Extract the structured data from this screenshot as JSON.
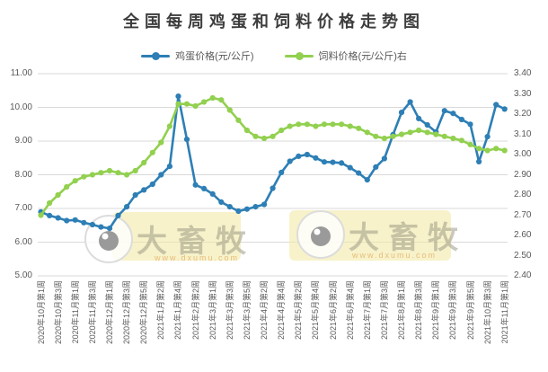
{
  "title": "全国每周鸡蛋和饲料价格走势图",
  "legend": [
    {
      "label": "鸡蛋价格(元/公斤)",
      "color": "#2d7fb5"
    },
    {
      "label": "饲料价格(元/公斤)右",
      "color": "#92d04f"
    }
  ],
  "watermark": {
    "name": "大畜牧",
    "url": "www.dxumu.com"
  },
  "colors": {
    "egg_line": "#2d7fb5",
    "feed_line": "#92d04f",
    "gridline": "#d9d9d9",
    "axis_text": "#595959",
    "title_text": "#3d3d3d",
    "watermark_box": "rgba(242,234,166,0.6)"
  },
  "chart_data": {
    "type": "line",
    "title": "全国每周鸡蛋和饲料价格走势图",
    "grid": true,
    "legend_position": "top",
    "x_labels": [
      "2020年10月第1周",
      "2020年10月第3周",
      "2020年11月第1周",
      "2020年11月第3周",
      "2020年12月第1周",
      "2020年12月第3周",
      "2020年12月第5周",
      "2021年1月第2周",
      "2021年1月第4周",
      "2021年2月第2周",
      "2021年3月第1周",
      "2021年3月第3周",
      "2021年3月第5周",
      "2021年4月第2周",
      "2021年4月第4周",
      "2021年5月第2周",
      "2021年5月第4周",
      "2021年6月第2周",
      "2021年6月第4周",
      "2021年7月第1周",
      "2021年7月第3周",
      "2021年8月第1周",
      "2021年8月第3周",
      "2021年9月第1周",
      "2021年9月第3周",
      "2021年9月第5周",
      "2021年10月第3周",
      "2021年11月第1周"
    ],
    "x_labels_every_n_points": 2,
    "left_axis": {
      "min": 5.0,
      "max": 11.0,
      "step": 1.0,
      "ticks": [
        "11.00",
        "10.00",
        "9.00",
        "8.00",
        "7.00",
        "6.00",
        "5.00"
      ]
    },
    "right_axis": {
      "min": 2.4,
      "max": 3.4,
      "step": 0.1,
      "ticks": [
        "3.40",
        "3.30",
        "3.20",
        "3.10",
        "3.00",
        "2.90",
        "2.80",
        "2.70",
        "2.60",
        "2.50",
        "2.40"
      ]
    },
    "series": [
      {
        "name": "鸡蛋价格(元/公斤)",
        "axis": "left",
        "color": "#2d7fb5",
        "values": [
          6.9,
          6.79,
          6.72,
          6.64,
          6.66,
          6.58,
          6.52,
          6.45,
          6.41,
          6.79,
          7.05,
          7.4,
          7.55,
          7.72,
          8.0,
          8.25,
          10.33,
          9.05,
          7.7,
          7.59,
          7.43,
          7.19,
          7.05,
          6.92,
          6.98,
          7.05,
          7.12,
          7.6,
          8.07,
          8.4,
          8.55,
          8.6,
          8.5,
          8.38,
          8.37,
          8.35,
          8.21,
          8.05,
          7.85,
          8.23,
          8.48,
          9.19,
          9.85,
          10.16,
          9.67,
          9.48,
          9.27,
          9.9,
          9.82,
          9.64,
          9.5,
          8.39,
          9.13,
          10.08,
          9.95
        ]
      },
      {
        "name": "饲料价格(元/公斤)右",
        "axis": "right",
        "color": "#92d04f",
        "values": [
          2.7,
          2.76,
          2.8,
          2.84,
          2.87,
          2.89,
          2.9,
          2.91,
          2.92,
          2.91,
          2.9,
          2.92,
          2.96,
          3.01,
          3.06,
          3.14,
          3.25,
          3.25,
          3.24,
          3.26,
          3.28,
          3.27,
          3.22,
          3.17,
          3.12,
          3.09,
          3.08,
          3.09,
          3.12,
          3.14,
          3.15,
          3.15,
          3.14,
          3.15,
          3.15,
          3.15,
          3.14,
          3.13,
          3.11,
          3.09,
          3.08,
          3.09,
          3.1,
          3.11,
          3.12,
          3.11,
          3.1,
          3.09,
          3.08,
          3.07,
          3.05,
          3.03,
          3.02,
          3.03,
          3.02
        ]
      }
    ]
  }
}
